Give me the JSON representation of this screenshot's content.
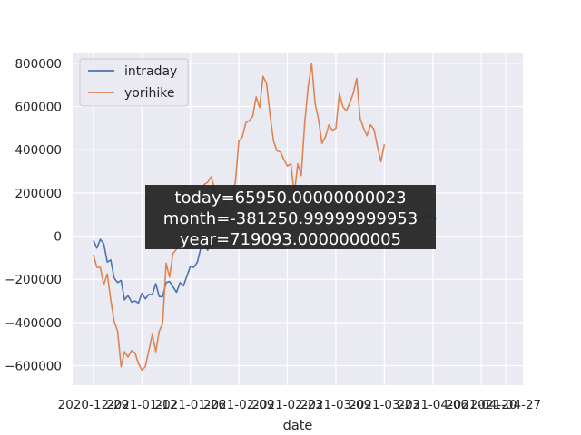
{
  "chart_data": {
    "type": "line",
    "xlabel": "date",
    "ylabel": "",
    "x_axis_type": "date",
    "xlim": [
      "2020-12-23",
      "2021-05-02"
    ],
    "ylim": [
      -690000,
      850000
    ],
    "x_ticks": [
      {
        "date": "2020-12-29",
        "label": "2020-12-29"
      },
      {
        "date": "2021-01-12",
        "label": "2021-01-12"
      },
      {
        "date": "2021-01-26",
        "label": "2021-01-26"
      },
      {
        "date": "2021-02-09",
        "label": "2021-02-09"
      },
      {
        "date": "2021-02-23",
        "label": "2021-02-23"
      },
      {
        "date": "2021-03-09",
        "label": "2021-03-09"
      },
      {
        "date": "2021-03-23",
        "label": "2021-03-23"
      },
      {
        "date": "2021-04-06",
        "label": "2021-04-06"
      },
      {
        "date": "2021-04-20",
        "label": "2021-04-20"
      },
      {
        "date": "2021-04-27",
        "label": "2021-04-27"
      }
    ],
    "y_ticks": [
      {
        "value": 800000,
        "label": "800000"
      },
      {
        "value": 600000,
        "label": "600000"
      },
      {
        "value": 400000,
        "label": "400000"
      },
      {
        "value": 200000,
        "label": "200000"
      },
      {
        "value": 0,
        "label": "0"
      },
      {
        "value": -200000,
        "label": "−200000"
      },
      {
        "value": -400000,
        "label": "−400000"
      },
      {
        "value": -600000,
        "label": "−600000"
      }
    ],
    "grid": true,
    "background": "#eaeaf2",
    "legend_position": "top-left",
    "series": [
      {
        "name": "intraday",
        "color": "#4c72b0",
        "points": [
          [
            "2020-12-29",
            -20000
          ],
          [
            "2020-12-30",
            -55000
          ],
          [
            "2020-12-31",
            -15000
          ],
          [
            "2021-01-01",
            -35000
          ],
          [
            "2021-01-02",
            -120000
          ],
          [
            "2021-01-03",
            -110000
          ],
          [
            "2021-01-04",
            -195000
          ],
          [
            "2021-01-05",
            -215000
          ],
          [
            "2021-01-06",
            -205000
          ],
          [
            "2021-01-07",
            -295000
          ],
          [
            "2021-01-08",
            -275000
          ],
          [
            "2021-01-09",
            -305000
          ],
          [
            "2021-01-10",
            -300000
          ],
          [
            "2021-01-11",
            -310000
          ],
          [
            "2021-01-12",
            -265000
          ],
          [
            "2021-01-13",
            -290000
          ],
          [
            "2021-01-14",
            -270000
          ],
          [
            "2021-01-15",
            -270000
          ],
          [
            "2021-01-16",
            -220000
          ],
          [
            "2021-01-17",
            -280000
          ],
          [
            "2021-01-18",
            -280000
          ],
          [
            "2021-01-19",
            -215000
          ],
          [
            "2021-01-20",
            -210000
          ],
          [
            "2021-01-21",
            -235000
          ],
          [
            "2021-01-22",
            -260000
          ],
          [
            "2021-01-23",
            -215000
          ],
          [
            "2021-01-24",
            -230000
          ],
          [
            "2021-01-25",
            -185000
          ],
          [
            "2021-01-26",
            -140000
          ],
          [
            "2021-01-27",
            -145000
          ],
          [
            "2021-01-28",
            -120000
          ],
          [
            "2021-01-29",
            -55000
          ],
          [
            "2021-01-30",
            -40000
          ],
          [
            "2021-01-31",
            -65000
          ],
          [
            "2021-02-01",
            -20000
          ],
          [
            "2021-02-02",
            -30000
          ],
          [
            "2021-02-03",
            -10000
          ],
          [
            "2021-02-04",
            -25000
          ],
          [
            "2021-02-05",
            -30000
          ],
          [
            "2021-02-06",
            -20000
          ],
          [
            "2021-02-07",
            -10000
          ],
          [
            "2021-02-08",
            -25000
          ],
          [
            "2021-03-30",
            70000
          ],
          [
            "2021-03-31",
            75000
          ],
          [
            "2021-04-01",
            65000
          ],
          [
            "2021-04-02",
            75000
          ],
          [
            "2021-04-03",
            88000
          ],
          [
            "2021-04-04",
            98000
          ],
          [
            "2021-04-05",
            90000
          ],
          [
            "2021-04-06",
            95000
          ],
          [
            "2021-04-07",
            80000
          ]
        ]
      },
      {
        "name": "yorihike",
        "color": "#dd8452",
        "points": [
          [
            "2020-12-29",
            -85000
          ],
          [
            "2020-12-30",
            -145000
          ],
          [
            "2020-12-31",
            -145000
          ],
          [
            "2021-01-01",
            -225000
          ],
          [
            "2021-01-02",
            -175000
          ],
          [
            "2021-01-03",
            -295000
          ],
          [
            "2021-01-04",
            -395000
          ],
          [
            "2021-01-05",
            -440000
          ],
          [
            "2021-01-06",
            -605000
          ],
          [
            "2021-01-07",
            -535000
          ],
          [
            "2021-01-08",
            -560000
          ],
          [
            "2021-01-09",
            -530000
          ],
          [
            "2021-01-10",
            -540000
          ],
          [
            "2021-01-11",
            -590000
          ],
          [
            "2021-01-12",
            -620000
          ],
          [
            "2021-01-13",
            -605000
          ],
          [
            "2021-01-14",
            -530000
          ],
          [
            "2021-01-15",
            -455000
          ],
          [
            "2021-01-16",
            -535000
          ],
          [
            "2021-01-17",
            -440000
          ],
          [
            "2021-01-18",
            -405000
          ],
          [
            "2021-01-19",
            -125000
          ],
          [
            "2021-01-20",
            -190000
          ],
          [
            "2021-01-21",
            -80000
          ],
          [
            "2021-01-22",
            -60000
          ],
          [
            "2021-01-23",
            -20000
          ],
          [
            "2021-01-24",
            60000
          ],
          [
            "2021-01-25",
            80000
          ],
          [
            "2021-01-26",
            100000
          ],
          [
            "2021-01-27",
            130000
          ],
          [
            "2021-01-28",
            150000
          ],
          [
            "2021-01-29",
            190000
          ],
          [
            "2021-01-30",
            240000
          ],
          [
            "2021-01-31",
            250000
          ],
          [
            "2021-02-01",
            275000
          ],
          [
            "2021-02-02",
            220000
          ],
          [
            "2021-02-03",
            120000
          ],
          [
            "2021-02-04",
            90000
          ],
          [
            "2021-02-05",
            150000
          ],
          [
            "2021-02-06",
            170000
          ],
          [
            "2021-02-07",
            190000
          ],
          [
            "2021-02-08",
            250000
          ],
          [
            "2021-02-09",
            440000
          ],
          [
            "2021-02-10",
            460000
          ],
          [
            "2021-02-11",
            525000
          ],
          [
            "2021-02-12",
            535000
          ],
          [
            "2021-02-13",
            555000
          ],
          [
            "2021-02-14",
            645000
          ],
          [
            "2021-02-15",
            595000
          ],
          [
            "2021-02-16",
            740000
          ],
          [
            "2021-02-17",
            705000
          ],
          [
            "2021-02-18",
            560000
          ],
          [
            "2021-02-19",
            440000
          ],
          [
            "2021-02-20",
            395000
          ],
          [
            "2021-02-21",
            390000
          ],
          [
            "2021-02-22",
            355000
          ],
          [
            "2021-02-23",
            325000
          ],
          [
            "2021-02-24",
            335000
          ],
          [
            "2021-02-25",
            195000
          ],
          [
            "2021-02-26",
            335000
          ],
          [
            "2021-02-27",
            280000
          ],
          [
            "2021-02-28",
            520000
          ],
          [
            "2021-03-01",
            690000
          ],
          [
            "2021-03-02",
            800000
          ],
          [
            "2021-03-03",
            615000
          ],
          [
            "2021-03-04",
            540000
          ],
          [
            "2021-03-05",
            430000
          ],
          [
            "2021-03-06",
            460000
          ],
          [
            "2021-03-07",
            515000
          ],
          [
            "2021-03-08",
            490000
          ],
          [
            "2021-03-09",
            500000
          ],
          [
            "2021-03-10",
            660000
          ],
          [
            "2021-03-11",
            600000
          ],
          [
            "2021-03-12",
            580000
          ],
          [
            "2021-03-13",
            615000
          ],
          [
            "2021-03-14",
            660000
          ],
          [
            "2021-03-15",
            730000
          ],
          [
            "2021-03-16",
            545000
          ],
          [
            "2021-03-17",
            500000
          ],
          [
            "2021-03-18",
            465000
          ],
          [
            "2021-03-19",
            515000
          ],
          [
            "2021-03-20",
            495000
          ],
          [
            "2021-03-21",
            415000
          ],
          [
            "2021-03-22",
            345000
          ],
          [
            "2021-03-23",
            425000
          ]
        ]
      }
    ],
    "annotation": {
      "lines": [
        "today=65950.00000000023",
        "month=-381250.99999999953",
        "year=719093.0000000005"
      ],
      "background": "#262626"
    }
  }
}
